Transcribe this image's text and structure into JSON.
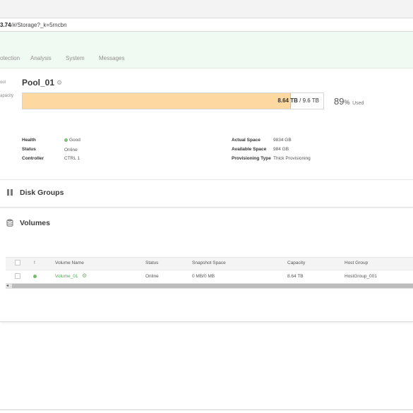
{
  "browser": {
    "url_host_fragment": "3.74",
    "url_path": "/#/Storage?_k=5rncbn"
  },
  "nav": {
    "tabs": [
      "otection",
      "Analysis",
      "System",
      "Messages"
    ]
  },
  "pool": {
    "side_label_pool": "ool",
    "side_label_capacity": "apacity",
    "name": "Pool_01",
    "capacity_used": "8.64 TB",
    "capacity_total": "9.6 TB",
    "capacity_separator": "/",
    "used_percent_value": 89,
    "used_percent": "89",
    "used_percent_sign": "%",
    "used_label": "Used",
    "left_details": [
      {
        "label": "Health",
        "value": "Good"
      },
      {
        "label": "Status",
        "value": "Online"
      },
      {
        "label": "Controller",
        "value": "CTRL 1"
      }
    ],
    "right_details": [
      {
        "label": "Actual Space",
        "value": "9834 GB"
      },
      {
        "label": "Available Space",
        "value": "984 GB"
      },
      {
        "label": "Provisioning Type",
        "value": "Thick Provisioning"
      }
    ]
  },
  "disk_groups": {
    "title": "Disk Groups"
  },
  "volumes": {
    "title": "Volumes",
    "columns": [
      "!",
      "Volume Name",
      "Status",
      "Snapshot Space",
      "Capacity",
      "Host Group"
    ],
    "rows": [
      {
        "name": "Volume_01",
        "status": "Online",
        "snapshot_space": "0 MB/0 MB",
        "capacity": "8.64 TB",
        "host_group": "HostGroup_001"
      }
    ]
  },
  "icons": {
    "pool_settings": "gear-icon",
    "disk_groups": "disk-group-icon",
    "volumes": "database-icon",
    "health_good": "status-dot-icon",
    "volume_settings": "gear-icon",
    "scroll_left": "chevron-left-icon"
  },
  "colors": {
    "accent_green": "#6fbe67",
    "capacity_fill": "#fdd8a1",
    "nav_band": "#f1faf2"
  }
}
